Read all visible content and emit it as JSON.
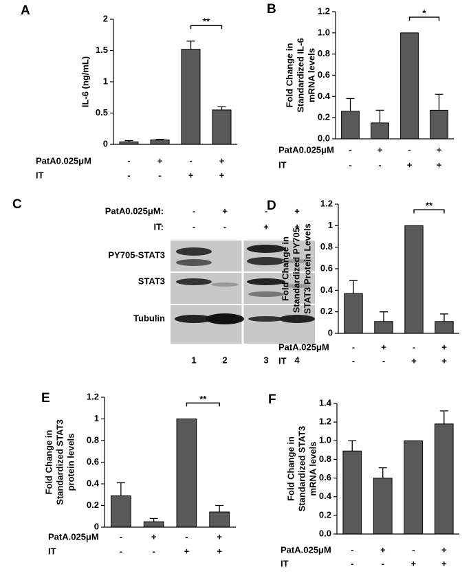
{
  "chart_data": [
    {
      "type": "bar",
      "panel": "A",
      "y_label": [
        "IL-6 (ng/mL)"
      ],
      "ylim": [
        0,
        2
      ],
      "yticks": [
        0,
        0.5,
        1,
        1.5,
        2
      ],
      "values": [
        0.04,
        0.07,
        1.52,
        0.55
      ],
      "errors": [
        0.02,
        0.01,
        0.13,
        0.05
      ],
      "color": "#595959",
      "significance": "**",
      "conditions": [
        {
          "name": "PatA0.025μM",
          "values": [
            "-",
            "+",
            "-",
            "+"
          ]
        },
        {
          "name": "IT",
          "values": [
            "-",
            "-",
            "+",
            "+"
          ]
        }
      ]
    },
    {
      "type": "bar",
      "panel": "B",
      "y_label": [
        "Fold Change in",
        "Standardized IL-6",
        "mRNA levels"
      ],
      "ylim": [
        0,
        1.2
      ],
      "yticks": [
        {
          "value": 0,
          "label": "0.0"
        },
        0.2,
        0.4,
        0.6,
        0.8,
        {
          "value": 1,
          "label": "1.0"
        },
        1.2
      ],
      "values": [
        0.26,
        0.15,
        1.0,
        0.27
      ],
      "errors": [
        0.12,
        0.12,
        0,
        0.15
      ],
      "color": "#595959",
      "significance": "*",
      "conditions": [
        {
          "name": "PatA0.025μM",
          "values": [
            "-",
            "+",
            "-",
            "+"
          ]
        },
        {
          "name": "IT",
          "values": [
            "-",
            "-",
            "+",
            "+"
          ]
        }
      ]
    },
    {
      "type": "bar",
      "panel": "D",
      "y_label": [
        "Fold Change in",
        "Standardized PY705-",
        "STAT3 Protein Levels"
      ],
      "ylim": [
        0,
        1.2
      ],
      "yticks": [
        0,
        0.2,
        0.4,
        0.6,
        0.8,
        1,
        1.2
      ],
      "values": [
        0.37,
        0.11,
        1.0,
        0.11
      ],
      "errors": [
        0.12,
        0.09,
        0,
        0.07
      ],
      "color": "#595959",
      "significance": "**",
      "conditions": [
        {
          "name": "PatA.025μM",
          "values": [
            "-",
            "+",
            "-",
            "+"
          ]
        },
        {
          "name": "IT",
          "values": [
            "-",
            "-",
            "+",
            "+"
          ]
        }
      ]
    },
    {
      "type": "bar",
      "panel": "E",
      "y_label": [
        "Fold Change in",
        "Standardized STAT3",
        "protein levels"
      ],
      "ylim": [
        0,
        1.2
      ],
      "yticks": [
        0,
        0.2,
        0.4,
        0.6,
        0.8,
        1,
        1.2
      ],
      "values": [
        0.29,
        0.05,
        1.0,
        0.14
      ],
      "errors": [
        0.12,
        0.03,
        0,
        0.06
      ],
      "color": "#595959",
      "significance": "**",
      "conditions": [
        {
          "name": "PatA.025μM",
          "values": [
            "-",
            "+",
            "-",
            "+"
          ]
        },
        {
          "name": "IT",
          "values": [
            "-",
            "-",
            "+",
            "+"
          ]
        }
      ]
    },
    {
      "type": "bar",
      "panel": "F",
      "y_label": [
        "Fold Change in",
        "Standardized STAT3",
        "mRNA levels"
      ],
      "ylim": [
        0,
        1.4
      ],
      "yticks": [
        {
          "value": 0,
          "label": "0.0"
        },
        0.2,
        0.4,
        0.6,
        0.8,
        {
          "value": 1,
          "label": "1.0"
        },
        1.2,
        1.4
      ],
      "values": [
        0.89,
        0.6,
        1.0,
        1.18
      ],
      "errors": [
        0.11,
        0.11,
        0,
        0.14
      ],
      "color": "#595959",
      "conditions": [
        {
          "name": "PatA.025μM",
          "values": [
            "-",
            "+",
            "-",
            "+"
          ]
        },
        {
          "name": "IT",
          "values": [
            "-",
            "-",
            "+",
            "+"
          ]
        }
      ]
    }
  ],
  "blot": {
    "panel": "C",
    "conditions": [
      {
        "name": "PatA0.025μM:",
        "values": [
          "-",
          "+",
          "-",
          "+"
        ]
      },
      {
        "name": "IT:",
        "values": [
          "-",
          "-",
          "+",
          "+"
        ]
      }
    ],
    "rows": [
      "PY705-STAT3",
      "STAT3",
      "Tubulin"
    ],
    "lanes": [
      "1",
      "2",
      "3",
      "4"
    ]
  }
}
